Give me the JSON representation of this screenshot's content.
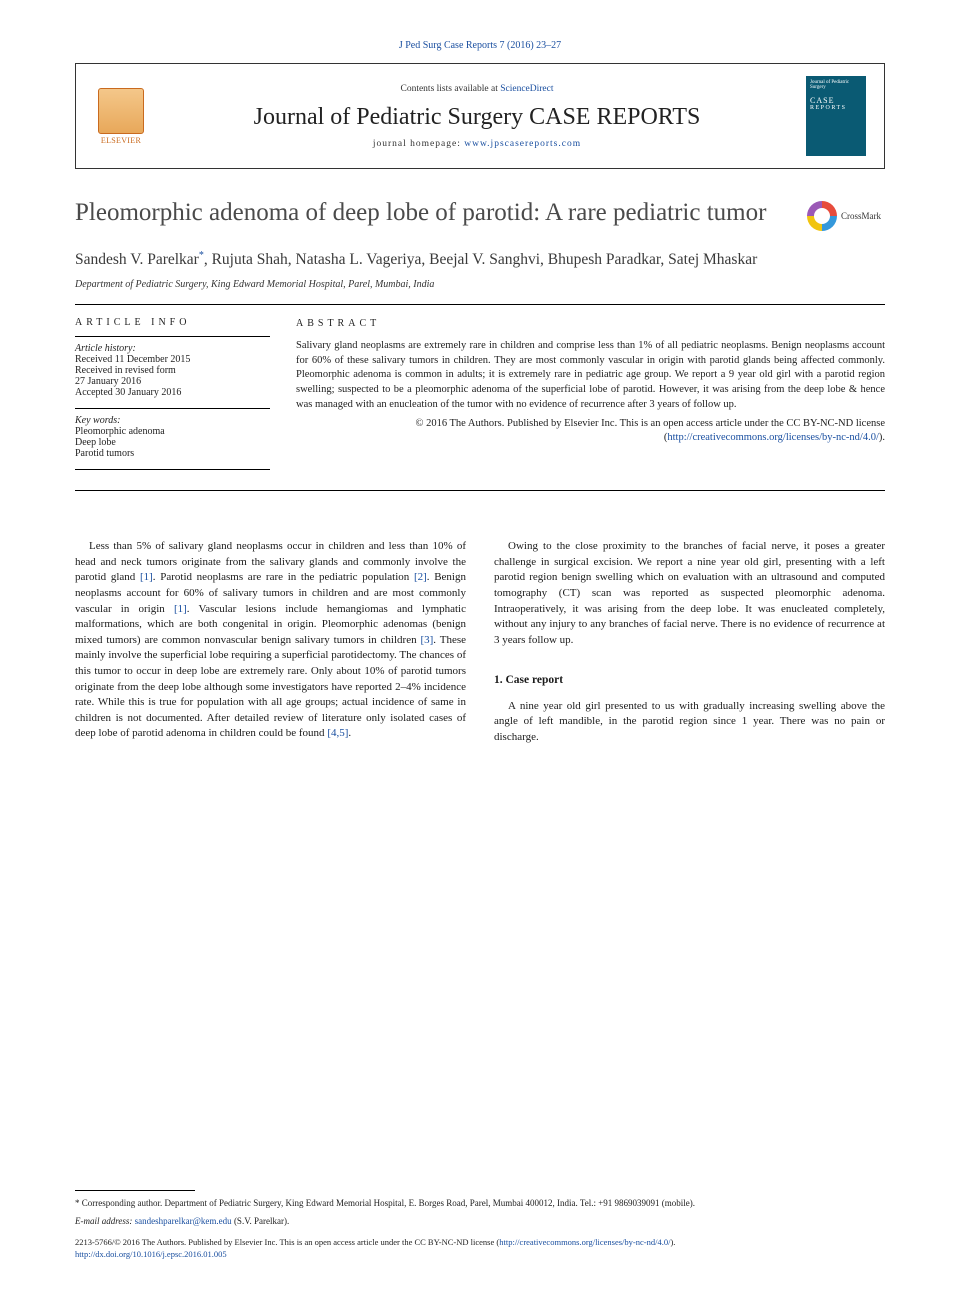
{
  "citation": "J Ped Surg Case Reports 7 (2016) 23–27",
  "header": {
    "contents_prefix": "Contents lists available at ",
    "contents_link": "ScienceDirect",
    "journal_name": "Journal of Pediatric Surgery CASE REPORTS",
    "homepage_prefix": "journal homepage: ",
    "homepage_url": "www.jpscasereports.com",
    "elsevier_label": "ELSEVIER",
    "cover_line1": "Journal of Pediatric Surgery",
    "cover_line2": "CASE",
    "cover_line3": "REPORTS"
  },
  "title": "Pleomorphic adenoma of deep lobe of parotid: A rare pediatric tumor",
  "crossmark": "CrossMark",
  "authors_html": "Sandesh V. Parelkar",
  "authors_sup": "*",
  "authors_rest": ", Rujuta Shah, Natasha L. Vageriya, Beejal V. Sanghvi, Bhupesh Paradkar, Satej Mhaskar",
  "affiliation": "Department of Pediatric Surgery, King Edward Memorial Hospital, Parel, Mumbai, India",
  "article_info": {
    "heading": "article info",
    "history_label": "Article history:",
    "received": "Received 11 December 2015",
    "revised1": "Received in revised form",
    "revised2": "27 January 2016",
    "accepted": "Accepted 30 January 2016",
    "keywords_label": "Key words:",
    "kw1": "Pleomorphic adenoma",
    "kw2": "Deep lobe",
    "kw3": "Parotid tumors"
  },
  "abstract": {
    "heading": "abstract",
    "text": "Salivary gland neoplasms are extremely rare in children and comprise less than 1% of all pediatric neoplasms. Benign neoplasms account for 60% of these salivary tumors in children. They are most commonly vascular in origin with parotid glands being affected commonly. Pleomorphic adenoma is common in adults; it is extremely rare in pediatric age group. We report a 9 year old girl with a parotid region swelling; suspected to be a pleomorphic adenoma of the superficial lobe of parotid. However, it was arising from the deep lobe & hence was managed with an enucleation of the tumor with no evidence of recurrence after 3 years of follow up.",
    "copyright": "© 2016 The Authors. Published by Elsevier Inc. This is an open access article under the CC BY-NC-ND license (",
    "license_url": "http://creativecommons.org/licenses/by-nc-nd/4.0/",
    "close": ")."
  },
  "body": {
    "col1": "Less than 5% of salivary gland neoplasms occur in children and less than 10% of head and neck tumors originate from the salivary glands and commonly involve the parotid gland [1]. Parotid neoplasms are rare in the pediatric population [2]. Benign neoplasms account for 60% of salivary tumors in children and are most commonly vascular in origin [1]. Vascular lesions include hemangiomas and lymphatic malformations, which are both congenital in origin. Pleomorphic adenomas (benign mixed tumors) are common nonvascular benign salivary tumors in children [3]. These mainly involve the superficial lobe requiring a superficial parotidectomy. The chances of this tumor to occur in deep lobe are extremely rare. Only about 10% of parotid tumors originate from the deep lobe although some investigators have reported 2–4% incidence rate. While this is true for population with all age groups; actual incidence of same in children is not documented. After detailed review of literature only isolated cases of deep lobe of parotid adenoma in children could be found [4,5].",
    "col2_p1": "Owing to the close proximity to the branches of facial nerve, it poses a greater challenge in surgical excision. We report a nine year old girl, presenting with a left parotid region benign swelling which on evaluation with an ultrasound and computed tomography (CT) scan was reported as suspected pleomorphic adenoma. Intraoperatively, it was arising from the deep lobe. It was enucleated completely, without any injury to any branches of facial nerve. There is no evidence of recurrence at 3 years follow up.",
    "section1": "1. Case report",
    "col2_p2": "A nine year old girl presented to us with gradually increasing swelling above the angle of left mandible, in the parotid region since 1 year. There was no pain or discharge."
  },
  "refs": {
    "r1": "[1]",
    "r2": "[2]",
    "r3": "[3]",
    "r45": "[4,5]"
  },
  "footer": {
    "corr": "* Corresponding author. Department of Pediatric Surgery, King Edward Memorial Hospital, E. Borges Road, Parel, Mumbai 400012, India. Tel.: +91 9869039091 (mobile).",
    "email_label": "E-mail address: ",
    "email": "sandeshparelkar@kem.edu",
    "email_suffix": " (S.V. Parelkar).",
    "license": "2213-5766/© 2016 The Authors. Published by Elsevier Inc. This is an open access article under the CC BY-NC-ND license (",
    "license_url": "http://creativecommons.org/licenses/by-nc-nd/4.0/",
    "license_close": ").",
    "doi": "http://dx.doi.org/10.1016/j.epsc.2016.01.005"
  },
  "colors": {
    "link": "#1a4fa0",
    "elsevier": "#c96a1e",
    "cover": "#0a5a73"
  }
}
